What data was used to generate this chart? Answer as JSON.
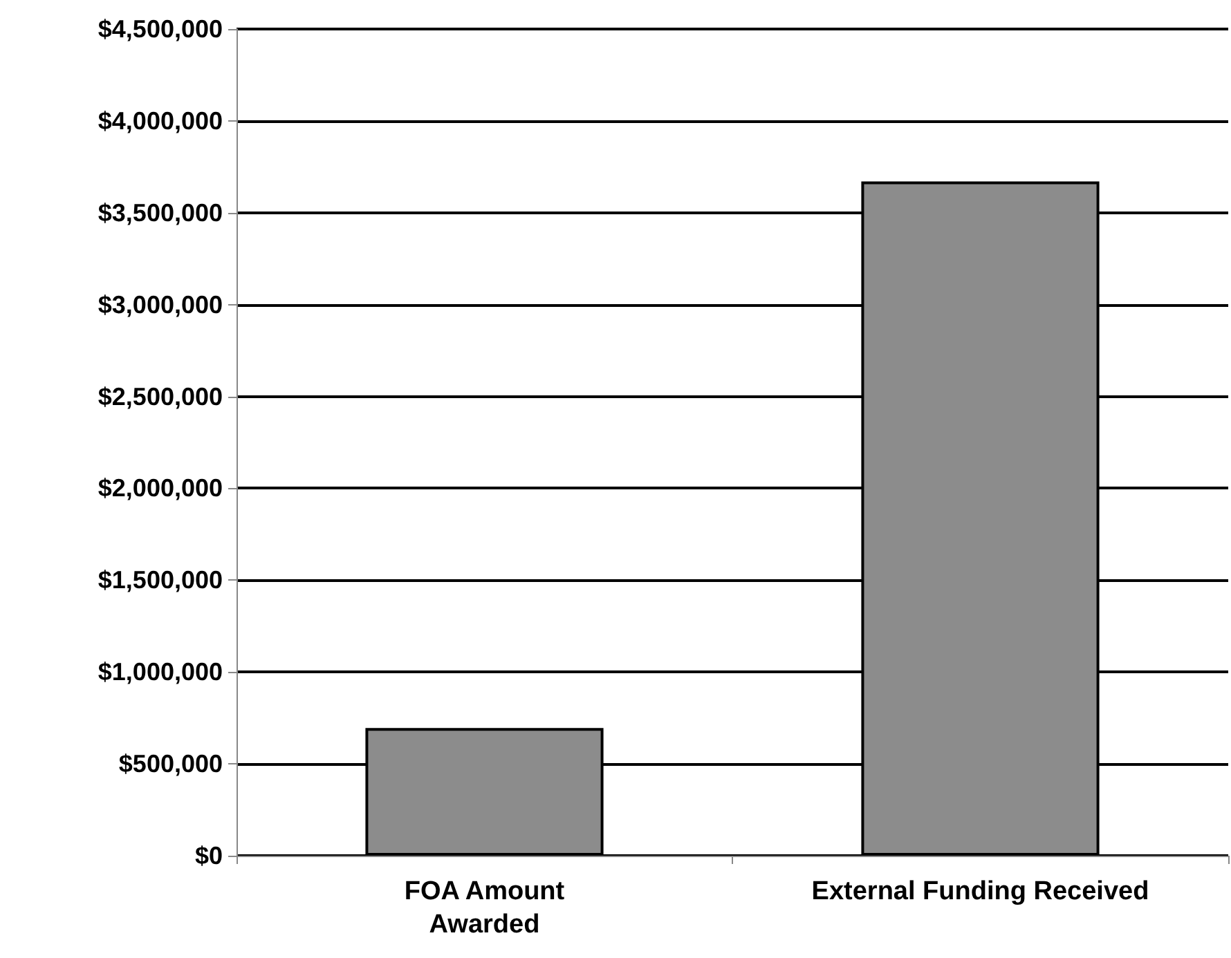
{
  "chart_data": {
    "type": "bar",
    "categories": [
      "FOA Amount\nAwarded",
      "External Funding Received"
    ],
    "values": [
      695000,
      3670000
    ],
    "color": "#8c8c8c",
    "ylim": [
      0,
      4500000
    ],
    "yticks": [
      {
        "value": 0,
        "label": "$0"
      },
      {
        "value": 500000,
        "label": "$500,000"
      },
      {
        "value": 1000000,
        "label": "$1,000,000"
      },
      {
        "value": 1500000,
        "label": "$1,500,000"
      },
      {
        "value": 2000000,
        "label": "$2,000,000"
      },
      {
        "value": 2500000,
        "label": "$2,500,000"
      },
      {
        "value": 3000000,
        "label": "$3,000,000"
      },
      {
        "value": 3500000,
        "label": "$3,500,000"
      },
      {
        "value": 4000000,
        "label": "$4,000,000"
      },
      {
        "value": 4500000,
        "label": "$4,500,000"
      }
    ],
    "grid": "y"
  }
}
